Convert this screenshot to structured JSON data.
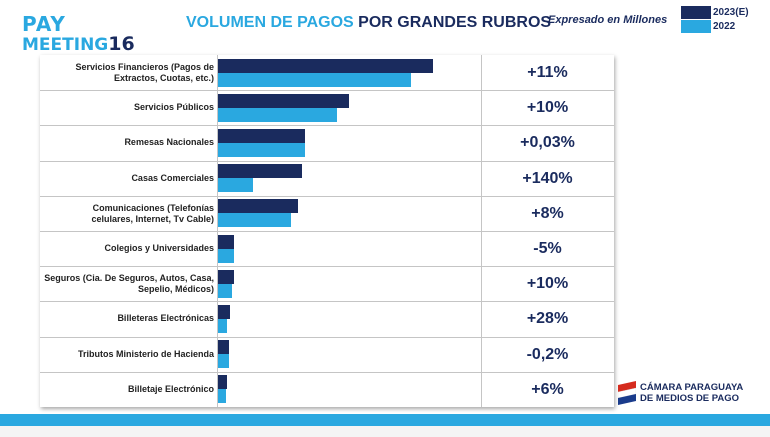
{
  "header": {
    "logo_line1": "PAY",
    "logo_line2_text": "MEETING",
    "logo_line2_num": "16",
    "title_part1": "VOLUMEN DE PAGOS",
    "title_part2": "POR GRANDES RUBROS",
    "subtitle": "Expresado en Millones"
  },
  "colors": {
    "series_2023": "#1a2b5e",
    "series_2022": "#2aa8e0"
  },
  "chart_data": {
    "type": "bar",
    "orientation": "horizontal",
    "title": "VOLUMEN DE PAGOS POR GRANDES RUBROS",
    "subtitle": "Expresado en Millones",
    "legend_position": "top-right",
    "categories": [
      [
        "Servicios Financieros (Pagos de",
        "Extractos, Cuotas, etc.)"
      ],
      [
        "Servicios Públicos"
      ],
      [
        "Remesas Nacionales"
      ],
      [
        "Casas Comerciales"
      ],
      [
        "Comunicaciones (Telefonías",
        "celulares, Internet, Tv Cable)"
      ],
      [
        "Colegios y Universidades"
      ],
      [
        "Seguros (Cia. De Seguros, Autos, Casa,",
        "Sepelio, Médicos)"
      ],
      [
        "Billeteras Electrónicas"
      ],
      [
        "Tributos Ministerio de Hacienda"
      ],
      [
        "Billetaje Electrónico"
      ]
    ],
    "series": [
      {
        "name": "2023(E)",
        "values": [
          218,
          133,
          88,
          85,
          81,
          16,
          16,
          12,
          11,
          9
        ]
      },
      {
        "name": "2022",
        "values": [
          196,
          121,
          88,
          35,
          74,
          16,
          14,
          9,
          11,
          8
        ]
      }
    ],
    "changes": [
      "+11%",
      "+10%",
      "+0,03%",
      "+140%",
      "+8%",
      "-5%",
      "+10%",
      "+28%",
      "-0,2%",
      "+6%"
    ],
    "xlim": [
      0,
      222
    ]
  },
  "footer": {
    "camara_line1": "CÁMARA PARAGUAYA",
    "camara_line2": "DE MEDIOS DE PAGO"
  }
}
